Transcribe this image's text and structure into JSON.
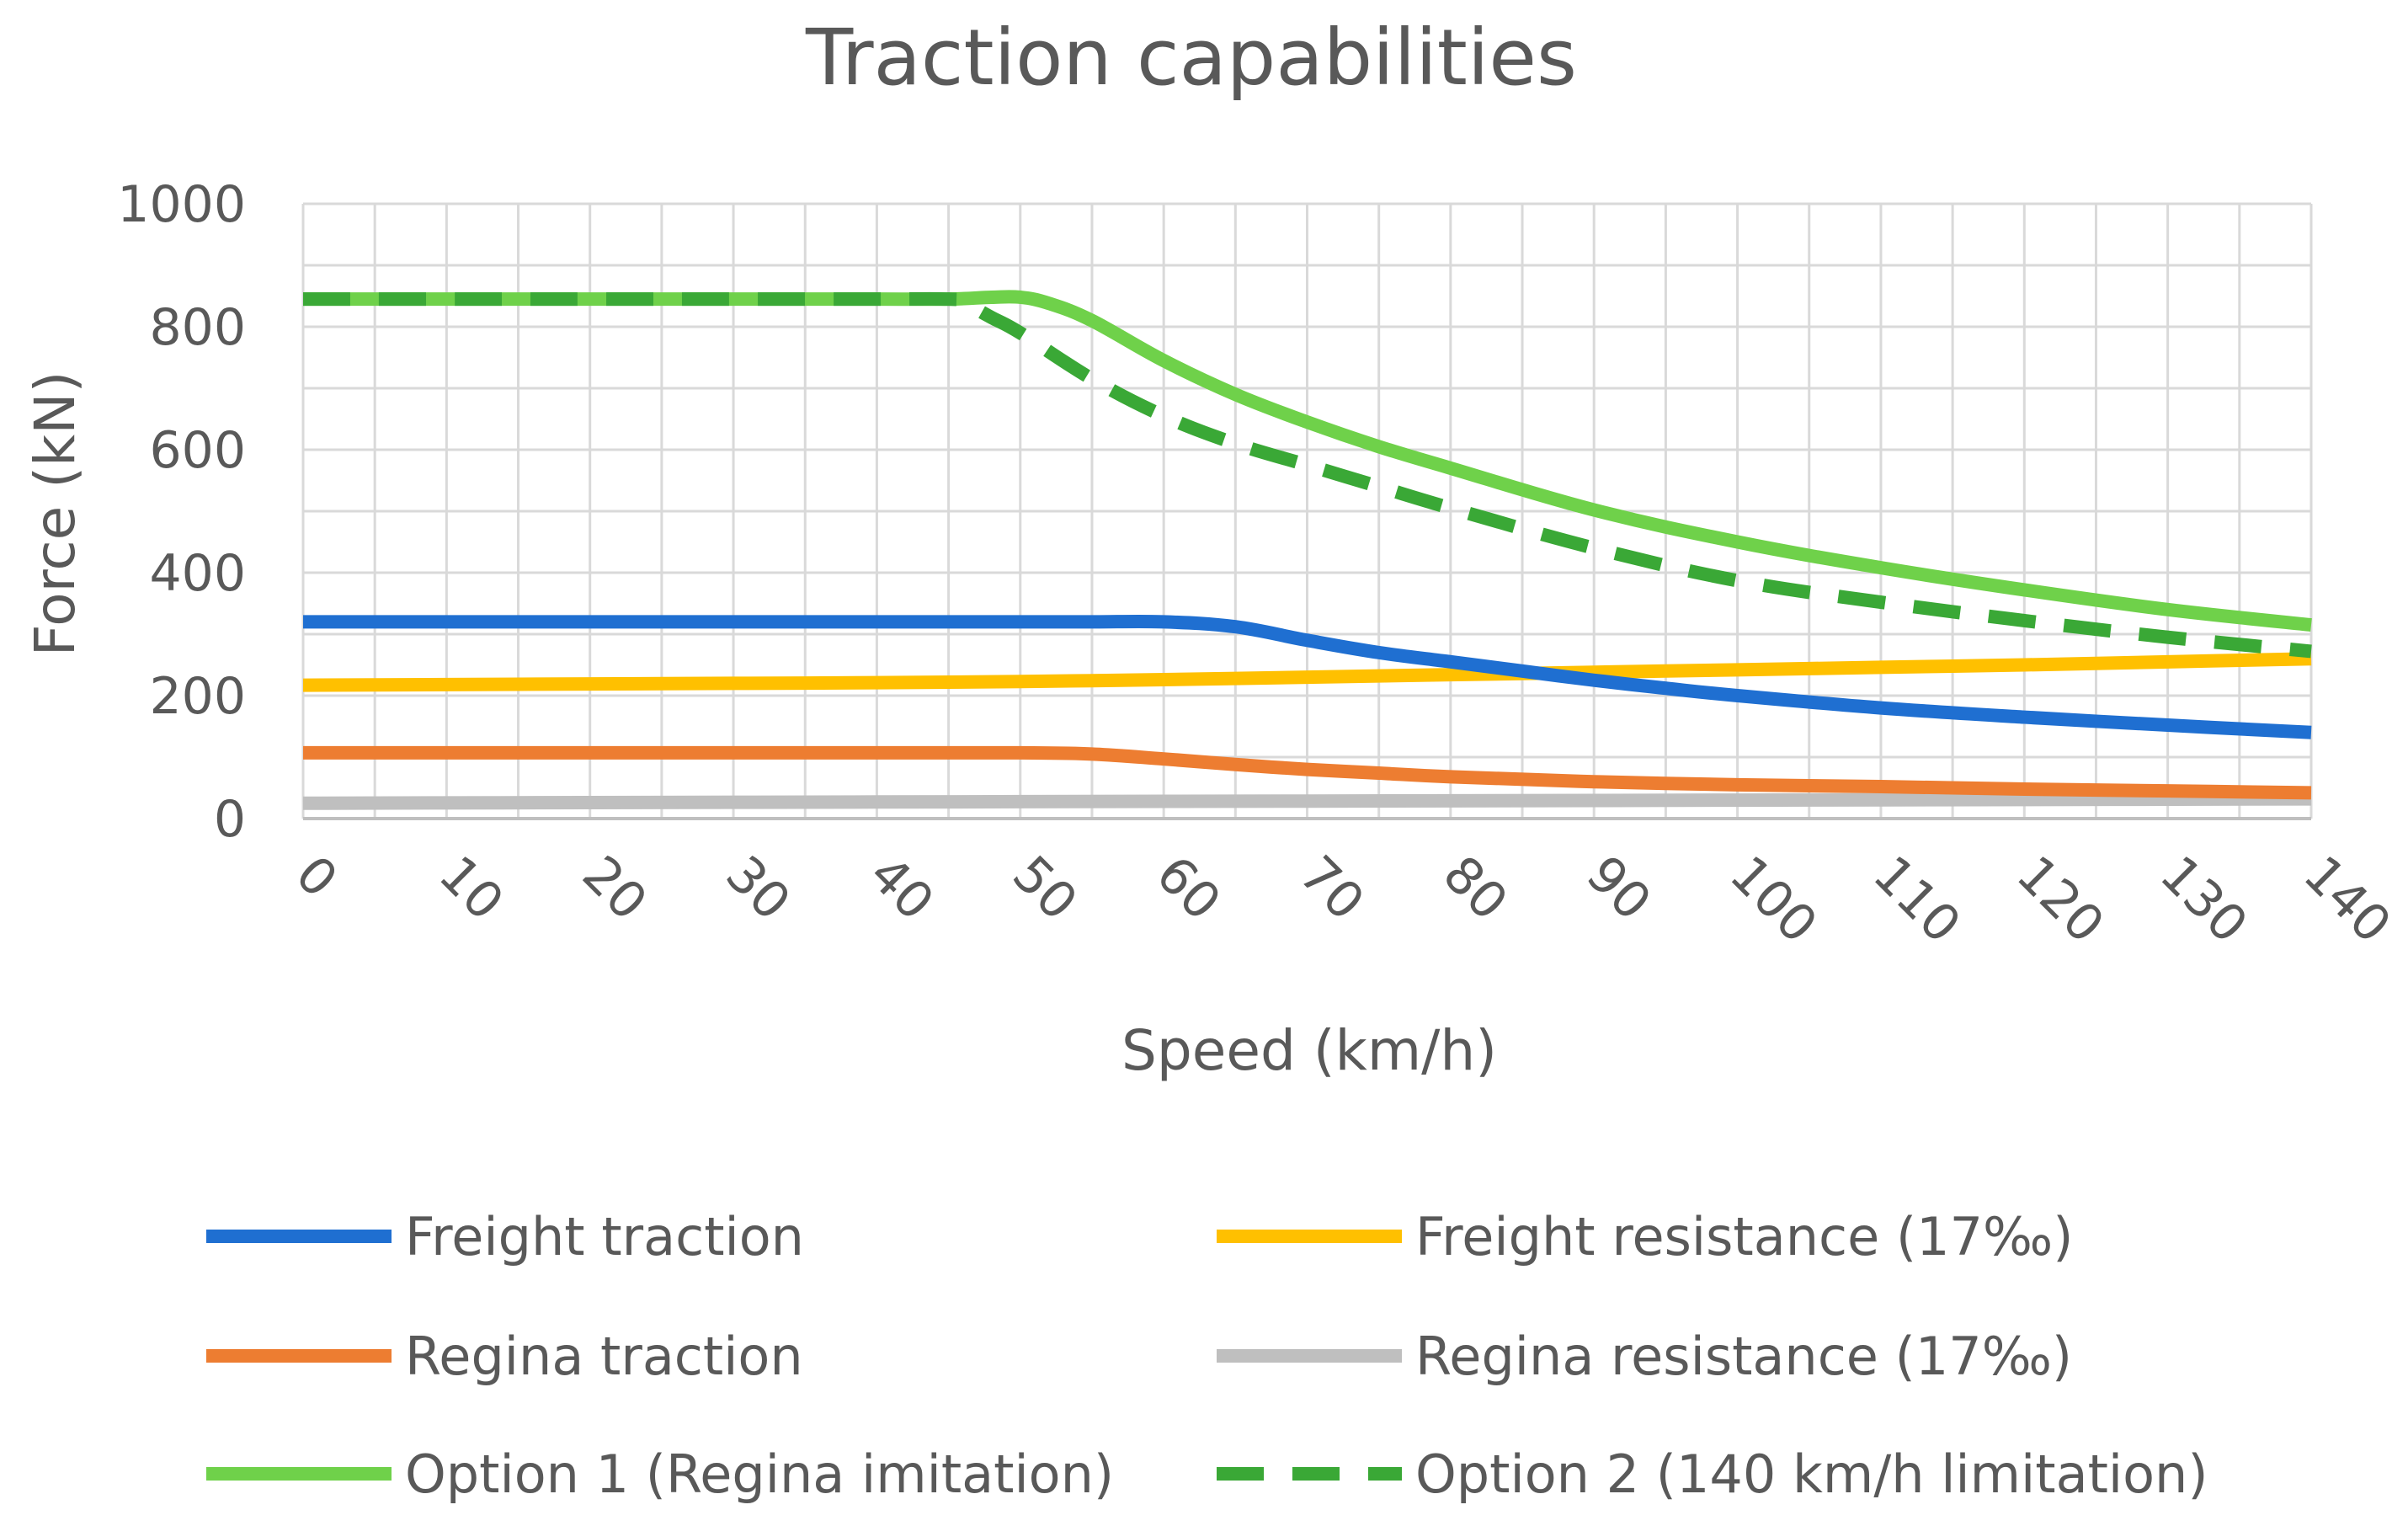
{
  "chart_data": {
    "type": "line",
    "title": "Traction capabilities",
    "xlabel": "Speed (km/h)",
    "ylabel": "Force (kN)",
    "xlim": [
      0,
      140
    ],
    "ylim": [
      0,
      1000
    ],
    "x_ticks": [
      "0",
      "10",
      "20",
      "30",
      "40",
      "50",
      "60",
      "70",
      "80",
      "90",
      "100",
      "110",
      "120",
      "130",
      "140"
    ],
    "y_ticks": [
      "0",
      "200",
      "400",
      "600",
      "800",
      "1000"
    ],
    "grid": true,
    "legend_position": "bottom",
    "series": [
      {
        "name": "Freight traction",
        "color": "#1f6fd1",
        "style": "solid",
        "x": [
          0,
          10,
          20,
          30,
          40,
          50,
          55,
          60,
          65,
          70,
          75,
          80,
          85,
          90,
          95,
          100,
          110,
          120,
          130,
          140
        ],
        "y": [
          320,
          320,
          320,
          320,
          320,
          320,
          320,
          320,
          312,
          290,
          270,
          255,
          240,
          225,
          212,
          200,
          180,
          165,
          152,
          140
        ]
      },
      {
        "name": "Freight resistance (17‰)",
        "color": "#ffc000",
        "style": "solid",
        "x": [
          0,
          10,
          20,
          30,
          40,
          50,
          60,
          70,
          80,
          90,
          100,
          110,
          120,
          130,
          140
        ],
        "y": [
          217,
          218,
          219,
          220,
          221,
          223,
          226,
          230,
          234,
          238,
          242,
          246,
          250,
          255,
          260
        ]
      },
      {
        "name": "Regina traction",
        "color": "#ed7d31",
        "style": "solid",
        "x": [
          0,
          10,
          20,
          30,
          40,
          50,
          55,
          60,
          65,
          70,
          75,
          80,
          90,
          100,
          110,
          120,
          130,
          140
        ],
        "y": [
          107,
          107,
          107,
          107,
          107,
          107,
          105,
          97,
          88,
          80,
          74,
          68,
          60,
          55,
          52,
          48,
          45,
          42
        ]
      },
      {
        "name": "Regina resistance (17‰)",
        "color": "#bfbfbf",
        "style": "solid",
        "x": [
          0,
          20,
          40,
          60,
          80,
          100,
          120,
          140
        ],
        "y": [
          25,
          26,
          27,
          28,
          29,
          30,
          31,
          32
        ]
      },
      {
        "name": "Option 1 (Regina imitation)",
        "color": "#6fd14a",
        "style": "solid",
        "x": [
          0,
          10,
          20,
          30,
          40,
          45,
          48,
          50,
          52,
          55,
          60,
          65,
          70,
          75,
          80,
          90,
          100,
          110,
          120,
          130,
          140
        ],
        "y": [
          845,
          845,
          845,
          845,
          845,
          845,
          848,
          848,
          838,
          810,
          745,
          690,
          645,
          605,
          570,
          502,
          450,
          408,
          372,
          340,
          315
        ]
      },
      {
        "name": "Option 2 (140 km/h limitation)",
        "color": "#3aa836",
        "style": "dashed",
        "x": [
          0,
          10,
          20,
          30,
          40,
          45,
          46,
          48,
          50,
          55,
          60,
          65,
          70,
          75,
          80,
          90,
          100,
          110,
          120,
          130,
          140
        ],
        "y": [
          845,
          845,
          845,
          845,
          845,
          845,
          840,
          815,
          790,
          715,
          655,
          610,
          575,
          540,
          505,
          440,
          387,
          352,
          322,
          295,
          272
        ]
      }
    ],
    "legend_layout": [
      [
        "Freight traction",
        "Freight resistance (17‰)"
      ],
      [
        "Regina traction",
        "Regina resistance (17‰)"
      ],
      [
        "Option 1 (Regina imitation)",
        "Option 2 (140 km/h limitation)"
      ]
    ]
  }
}
